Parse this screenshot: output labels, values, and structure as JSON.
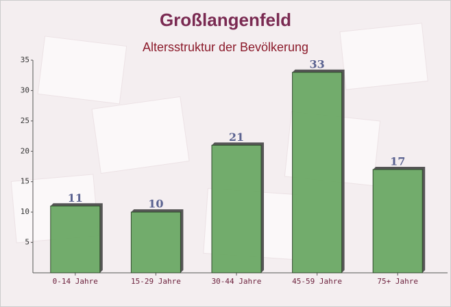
{
  "chart_data": {
    "type": "bar",
    "title": "Großlangenfeld",
    "subtitle": "Altersstruktur der Bevölkerung",
    "categories": [
      "0-14 Jahre",
      "15-29 Jahre",
      "30-44 Jahre",
      "45-59 Jahre",
      "75+ Jahre"
    ],
    "values": [
      11,
      10,
      21,
      33,
      17
    ],
    "color": "#6aa864",
    "ylim": [
      0,
      35
    ],
    "yticks": [
      5,
      10,
      15,
      20,
      25,
      30,
      35
    ],
    "grid": false
  }
}
